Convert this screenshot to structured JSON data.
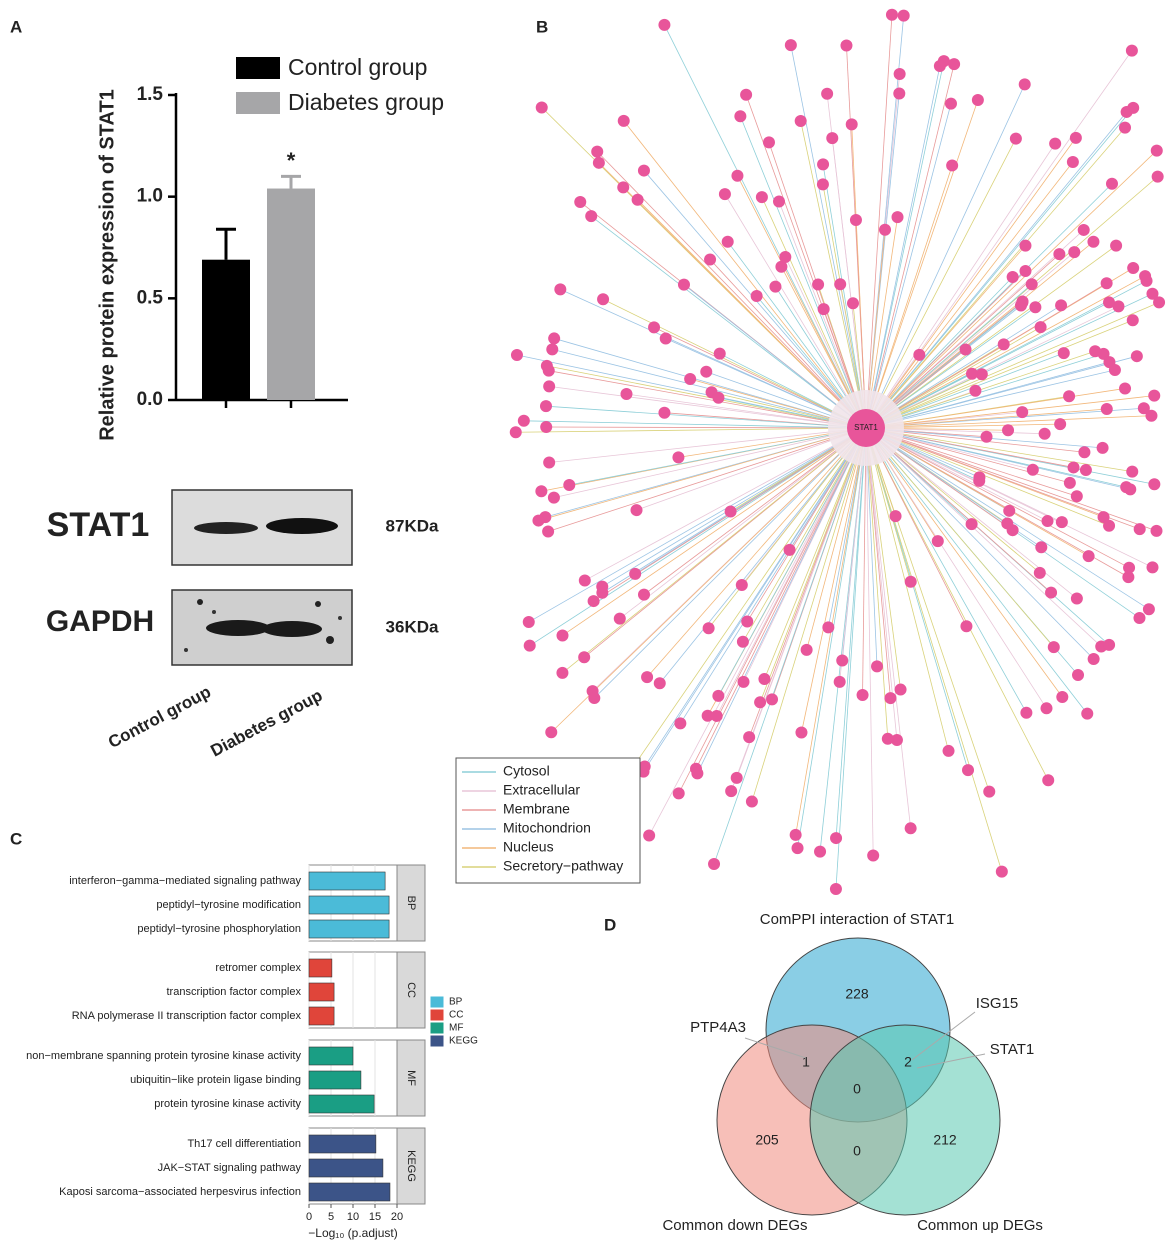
{
  "panel_labels": [
    "A",
    "B",
    "C",
    "D"
  ],
  "chart_data": [
    {
      "type": "bar",
      "ylabel": "Relative protein expression of STAT1",
      "categories": [
        null
      ],
      "series": [
        {
          "name": "Control group",
          "color": "#000000",
          "values": [
            0.69
          ],
          "errors": [
            0.15
          ]
        },
        {
          "name": "Diabetes group",
          "color": "#a6a6a8",
          "values": [
            1.04
          ],
          "errors": [
            0.06
          ]
        }
      ],
      "annotation": "*",
      "ylim": [
        0,
        1.5
      ],
      "yticks": [
        {
          "value": 0,
          "label": "0.0"
        },
        0.5,
        {
          "value": 1,
          "label": "1.0"
        },
        1.5
      ]
    },
    {
      "type": "bar",
      "orientation": "horizontal",
      "xlabel": "−Log₁₀ (p.adjust)",
      "series": [
        {
          "name": "BP",
          "color": "#4bbbd8",
          "categories": [
            "interferon−gamma−mediated signaling pathway",
            "peptidyl−tyrosine modification",
            "peptidyl−tyrosine phosphorylation"
          ],
          "values": [
            17.3,
            18.2,
            18.2
          ]
        },
        {
          "name": "CC",
          "color": "#e0453a",
          "categories": [
            "retromer complex",
            "transcription factor complex",
            "RNA polymerase II transcription factor complex"
          ],
          "values": [
            5.2,
            5.7,
            5.7
          ]
        },
        {
          "name": "MF",
          "color": "#1a9e84",
          "categories": [
            "non−membrane spanning protein tyrosine kinase activity",
            "ubiquitin−like protein ligase binding",
            "protein tyrosine kinase activity"
          ],
          "values": [
            10,
            11.8,
            14.8
          ]
        },
        {
          "name": "KEGG",
          "color": "#3c5488",
          "categories": [
            "Th17 cell differentiation",
            "JAK−STAT signaling pathway",
            "Kaposi sarcoma−associated herpesvirus infection"
          ],
          "values": [
            15.2,
            16.8,
            18.4
          ]
        }
      ],
      "xlim": [
        0,
        20
      ],
      "xticks": [
        0,
        5,
        10,
        15,
        20
      ],
      "grid": true
    },
    {
      "type": "venn",
      "sets": [
        {
          "name": "ComPPI interaction of STAT1",
          "color": "#2aa6cf"
        },
        {
          "name": "Common down DEGs",
          "color": "#f08a7e"
        },
        {
          "name": "Common up DEGs",
          "color": "#5ac8b0"
        }
      ],
      "regions": [
        {
          "sets": [
            0
          ],
          "value": 228
        },
        {
          "sets": [
            1
          ],
          "value": 205
        },
        {
          "sets": [
            2
          ],
          "value": 212
        },
        {
          "sets": [
            0,
            1
          ],
          "value": 1
        },
        {
          "sets": [
            0,
            2
          ],
          "value": 2
        },
        {
          "sets": [
            1,
            2
          ],
          "value": 0
        },
        {
          "sets": [
            0,
            1,
            2
          ],
          "value": 0
        }
      ],
      "annotations": [
        "PTP4A3",
        "ISG15",
        "STAT1"
      ]
    }
  ],
  "blot": {
    "proteins": [
      {
        "name": "STAT1",
        "size": "87KDa"
      },
      {
        "name": "GAPDH",
        "size": "36KDa"
      }
    ],
    "lanes": [
      "Control group",
      "Diabetes group"
    ]
  },
  "network": {
    "center": "STAT1",
    "legend": [
      {
        "name": "Cytosol",
        "color": "#8ecfd8"
      },
      {
        "name": "Extracellular",
        "color": "#e8c6d8"
      },
      {
        "name": "Membrane",
        "color": "#e89a9a"
      },
      {
        "name": "Mitochondrion",
        "color": "#9cc4e4"
      },
      {
        "name": "Nucleus",
        "color": "#f2b77a"
      },
      {
        "name": "Secretory−pathway",
        "color": "#d9d27a"
      }
    ]
  }
}
